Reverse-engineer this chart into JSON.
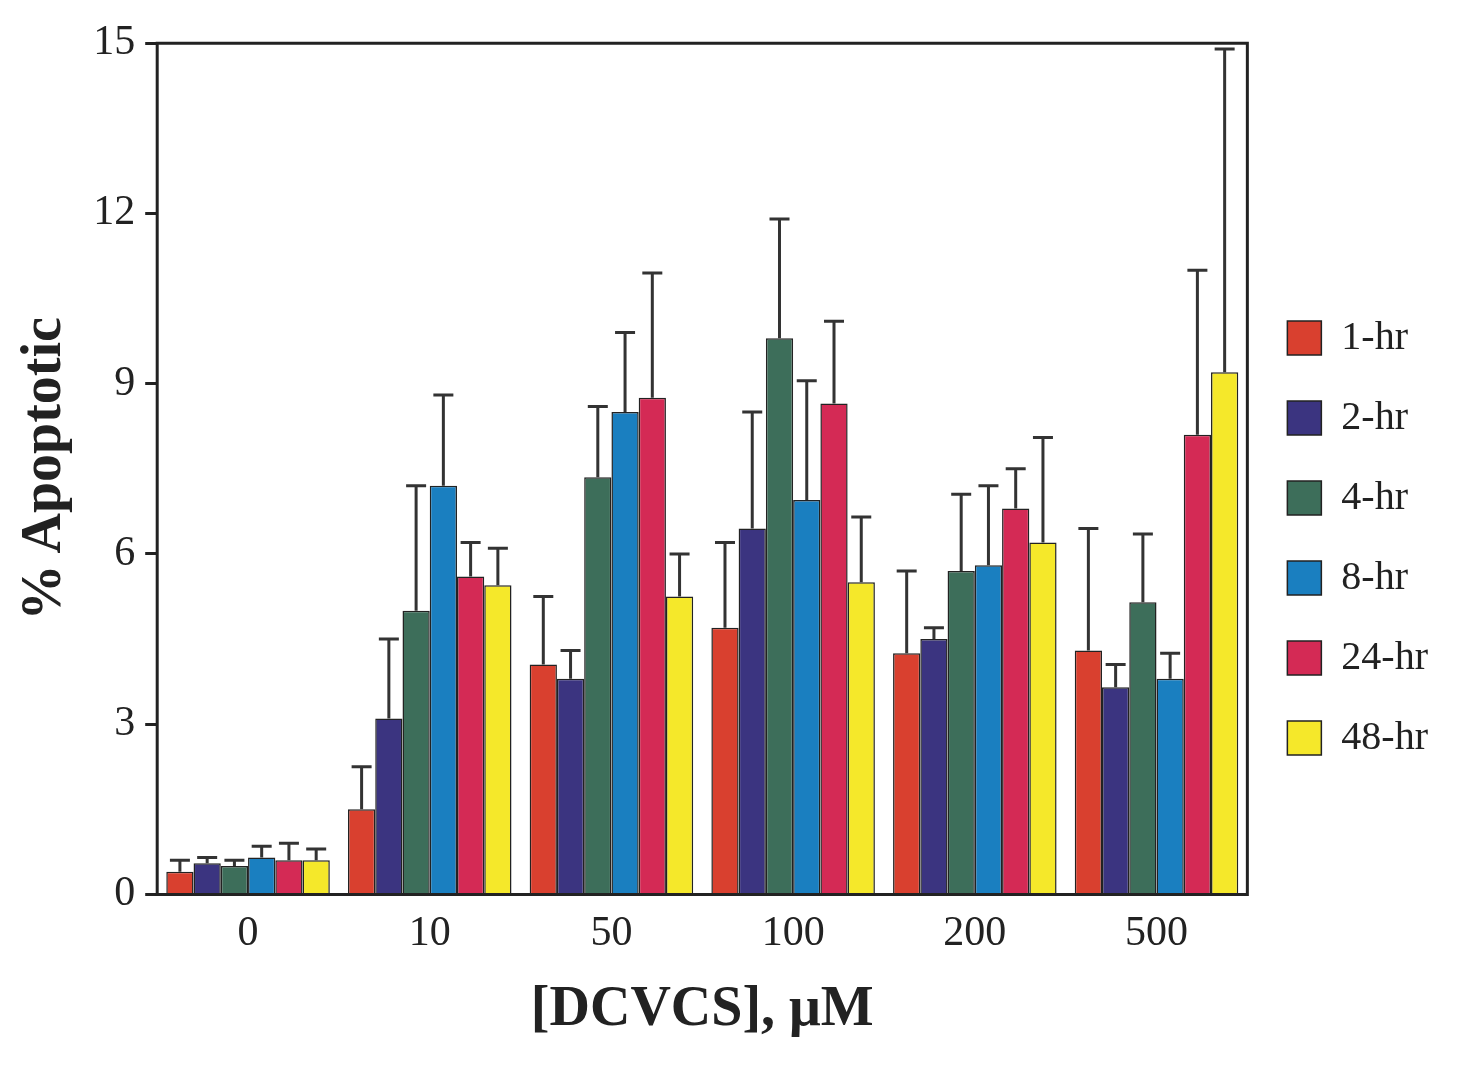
{
  "chart_data": {
    "type": "bar",
    "xlabel": "[DCVCS], μM",
    "ylabel": "% Apoptotic",
    "categories": [
      "0",
      "10",
      "50",
      "100",
      "200",
      "500"
    ],
    "ylim": [
      0,
      15
    ],
    "yticks": [
      0,
      3,
      6,
      9,
      12,
      15
    ],
    "grid": false,
    "legend": "right",
    "series": [
      {
        "name": "1-hr",
        "color": "#d9402f",
        "values": [
          0.4,
          1.5,
          4.05,
          4.7,
          4.25,
          4.3
        ],
        "errors": [
          [
            0.4,
            0.6
          ],
          [
            1.5,
            2.25
          ],
          [
            4.05,
            5.25
          ],
          [
            4.7,
            6.2
          ],
          [
            4.25,
            5.7
          ],
          [
            4.3,
            6.45
          ]
        ]
      },
      {
        "name": "2-hr",
        "color": "#3b3480",
        "values": [
          0.55,
          3.1,
          3.8,
          6.45,
          4.5,
          3.65
        ],
        "errors": [
          [
            0.55,
            0.65
          ],
          [
            3.1,
            4.5
          ],
          [
            3.8,
            4.3
          ],
          [
            6.45,
            8.5
          ],
          [
            4.5,
            4.7
          ],
          [
            3.65,
            4.05
          ]
        ]
      },
      {
        "name": "4-hr",
        "color": "#3d6e5a",
        "values": [
          0.5,
          5.0,
          7.35,
          9.8,
          5.7,
          5.15
        ],
        "errors": [
          [
            0.5,
            0.6
          ],
          [
            5.0,
            7.2
          ],
          [
            7.35,
            8.6
          ],
          [
            9.8,
            11.9
          ],
          [
            5.7,
            7.05
          ],
          [
            5.15,
            6.35
          ]
        ]
      },
      {
        "name": "8-hr",
        "color": "#1a7fc0",
        "values": [
          0.65,
          7.2,
          8.5,
          6.95,
          5.8,
          3.8
        ],
        "errors": [
          [
            0.65,
            0.85
          ],
          [
            7.2,
            8.8
          ],
          [
            8.5,
            9.9
          ],
          [
            6.95,
            9.05
          ],
          [
            5.8,
            7.2
          ],
          [
            3.8,
            4.25
          ]
        ]
      },
      {
        "name": "24-hr",
        "color": "#d42a55",
        "values": [
          0.6,
          5.6,
          8.75,
          8.65,
          6.8,
          8.1
        ],
        "errors": [
          [
            0.6,
            0.9
          ],
          [
            5.6,
            6.2
          ],
          [
            8.75,
            10.95
          ],
          [
            8.65,
            10.1
          ],
          [
            6.8,
            7.5
          ],
          [
            8.1,
            11.0
          ]
        ]
      },
      {
        "name": "48-hr",
        "color": "#f5e82a",
        "values": [
          0.6,
          5.45,
          5.25,
          5.5,
          6.2,
          9.2
        ],
        "errors": [
          [
            0.6,
            0.8
          ],
          [
            5.45,
            6.1
          ],
          [
            5.25,
            6.0
          ],
          [
            5.5,
            6.65
          ],
          [
            6.2,
            8.05
          ],
          [
            9.2,
            14.9
          ]
        ]
      }
    ]
  }
}
